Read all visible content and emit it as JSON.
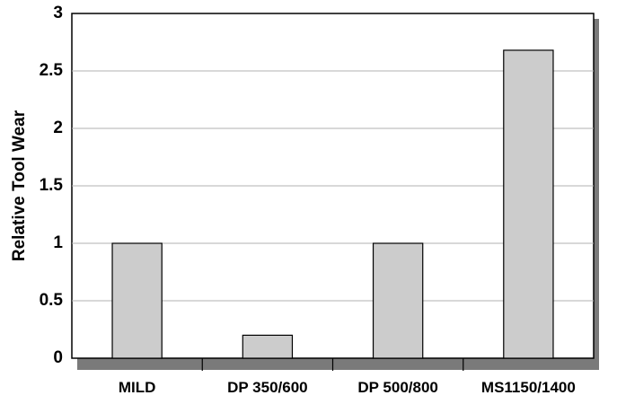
{
  "chart_data": {
    "type": "bar",
    "title": "",
    "xlabel": "",
    "ylabel": "Relative Tool Wear",
    "categories": [
      "MILD",
      "DP 350/600",
      "DP 500/800",
      "MS1150/1400"
    ],
    "values": [
      1.0,
      0.2,
      1.0,
      2.68
    ],
    "ylim": [
      0,
      3
    ],
    "yticks": [
      {
        "value": 0,
        "label": "0"
      },
      {
        "value": 0.5,
        "label": "0.5"
      },
      {
        "value": 1,
        "label": "1"
      },
      {
        "value": 1.5,
        "label": "1.5"
      },
      {
        "value": 2,
        "label": "2"
      },
      {
        "value": 2.5,
        "label": "2.5"
      },
      {
        "value": 3,
        "label": "3"
      }
    ],
    "grid": true,
    "legend": "none",
    "colors": {
      "bar_fill": "#cccccc",
      "bar_stroke": "#000000",
      "grid": "#b0b0b0",
      "shadow": "#7a7a7a"
    }
  }
}
